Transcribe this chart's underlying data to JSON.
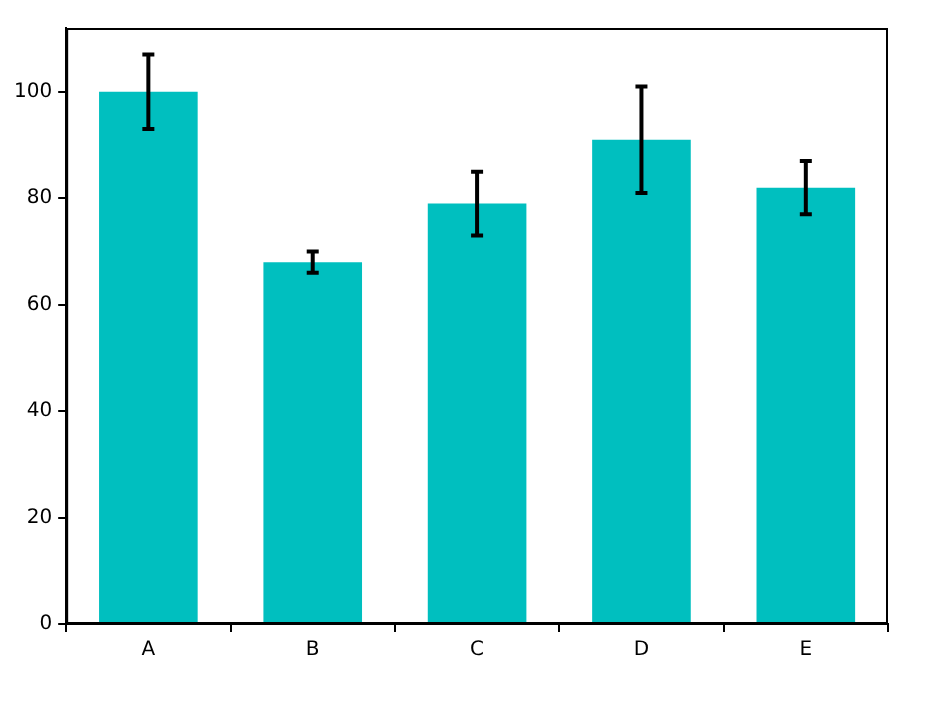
{
  "chart_data": {
    "type": "bar",
    "categories": [
      "A",
      "B",
      "C",
      "D",
      "E"
    ],
    "values": [
      100,
      68,
      79,
      91,
      82
    ],
    "errors": [
      7,
      2,
      6,
      10,
      5
    ],
    "color": "#00bfbf",
    "ylim": [
      0,
      112
    ],
    "yticks": [
      0,
      20,
      40,
      60,
      80,
      100
    ],
    "grid": false,
    "legend": false
  }
}
